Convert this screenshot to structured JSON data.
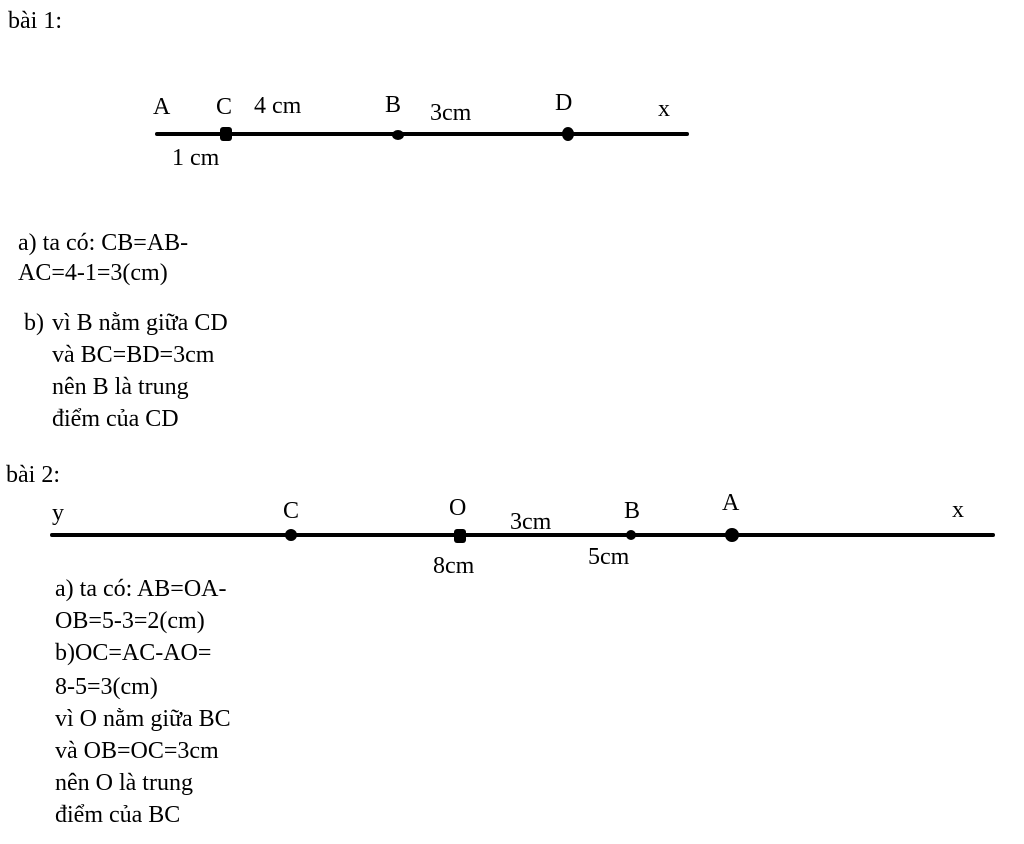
{
  "bai1": {
    "title": "bài 1:",
    "labels": {
      "A": "A",
      "C": "C",
      "ac_top": "4 cm",
      "B": "B",
      "bd": "3cm",
      "D": "D",
      "x": "x",
      "ac": "1 cm"
    },
    "solution_a": [
      "a) ta có: CB=AB-",
      "AC=4-1=3(cm)"
    ],
    "solution_b_label": "b)",
    "solution_b": [
      "vì B nằm giữa CD",
      "và BC=BD=3cm",
      "nên B là trung",
      "điểm của CD"
    ]
  },
  "bai2": {
    "title": "bài 2:",
    "labels": {
      "y": "y",
      "C": "C",
      "O": "O",
      "ob": "3cm",
      "B": "B",
      "A": "A",
      "x": "x",
      "ac": "8cm",
      "oa": "5cm"
    },
    "solution": [
      "a) ta có: AB=OA-",
      "OB=5-3=2(cm)",
      "b)OC=AC-AO=",
      "8-5=3(cm)",
      "vì O nằm giữa BC",
      "và OB=OC=3cm",
      "nên O là trung",
      "điểm của BC"
    ]
  }
}
